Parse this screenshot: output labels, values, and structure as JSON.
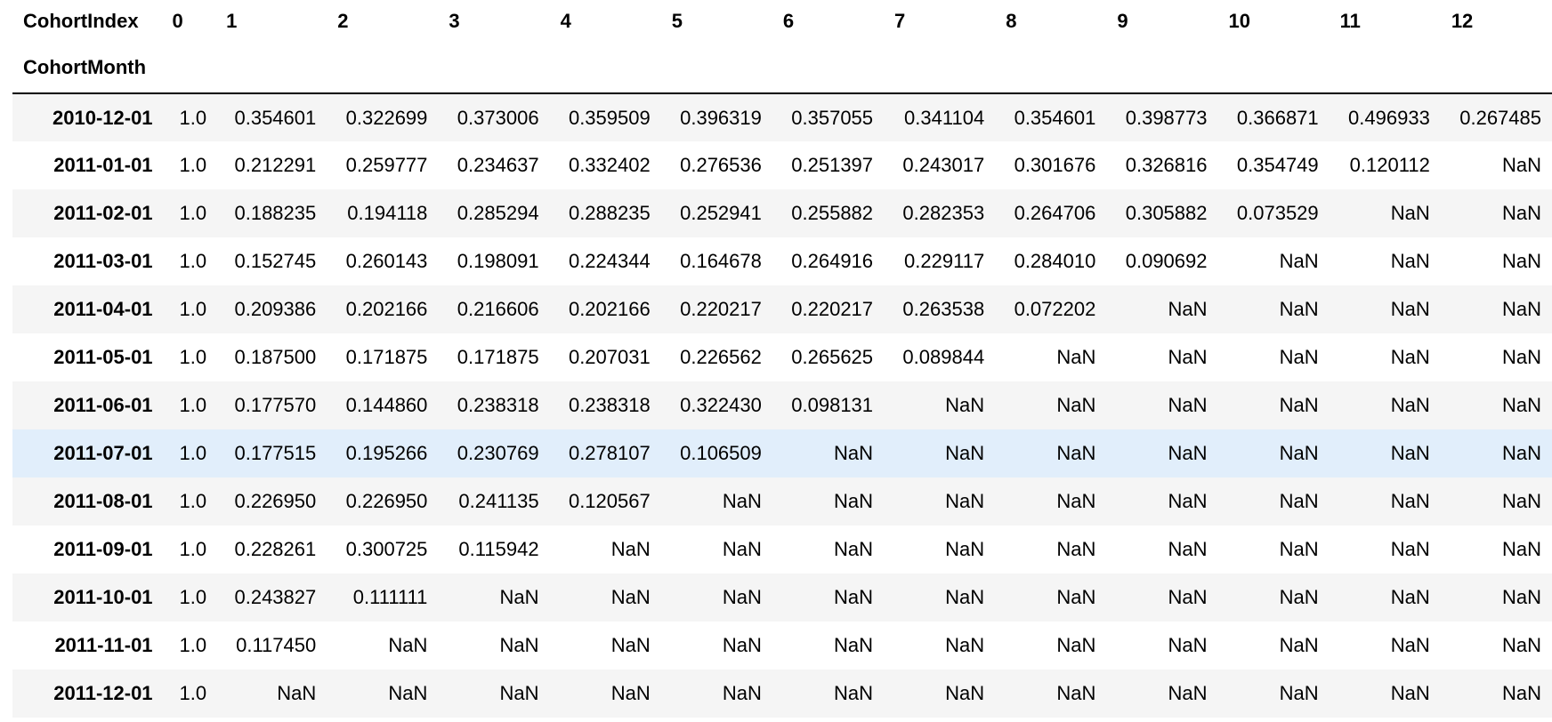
{
  "table": {
    "columns_name": "CohortIndex",
    "index_name": "CohortMonth",
    "columns": [
      "0",
      "1",
      "2",
      "3",
      "4",
      "5",
      "6",
      "7",
      "8",
      "9",
      "10",
      "11",
      "12"
    ],
    "highlight_color": "#e1eefb",
    "stripe_color": "#f5f5f5",
    "highlighted_row": "2011-07-01",
    "rows": [
      {
        "label": "2010-12-01",
        "values": [
          "1.0",
          "0.354601",
          "0.322699",
          "0.373006",
          "0.359509",
          "0.396319",
          "0.357055",
          "0.341104",
          "0.354601",
          "0.398773",
          "0.366871",
          "0.496933",
          "0.267485"
        ]
      },
      {
        "label": "2011-01-01",
        "values": [
          "1.0",
          "0.212291",
          "0.259777",
          "0.234637",
          "0.332402",
          "0.276536",
          "0.251397",
          "0.243017",
          "0.301676",
          "0.326816",
          "0.354749",
          "0.120112",
          "NaN"
        ]
      },
      {
        "label": "2011-02-01",
        "values": [
          "1.0",
          "0.188235",
          "0.194118",
          "0.285294",
          "0.288235",
          "0.252941",
          "0.255882",
          "0.282353",
          "0.264706",
          "0.305882",
          "0.073529",
          "NaN",
          "NaN"
        ]
      },
      {
        "label": "2011-03-01",
        "values": [
          "1.0",
          "0.152745",
          "0.260143",
          "0.198091",
          "0.224344",
          "0.164678",
          "0.264916",
          "0.229117",
          "0.284010",
          "0.090692",
          "NaN",
          "NaN",
          "NaN"
        ]
      },
      {
        "label": "2011-04-01",
        "values": [
          "1.0",
          "0.209386",
          "0.202166",
          "0.216606",
          "0.202166",
          "0.220217",
          "0.220217",
          "0.263538",
          "0.072202",
          "NaN",
          "NaN",
          "NaN",
          "NaN"
        ]
      },
      {
        "label": "2011-05-01",
        "values": [
          "1.0",
          "0.187500",
          "0.171875",
          "0.171875",
          "0.207031",
          "0.226562",
          "0.265625",
          "0.089844",
          "NaN",
          "NaN",
          "NaN",
          "NaN",
          "NaN"
        ]
      },
      {
        "label": "2011-06-01",
        "values": [
          "1.0",
          "0.177570",
          "0.144860",
          "0.238318",
          "0.238318",
          "0.322430",
          "0.098131",
          "NaN",
          "NaN",
          "NaN",
          "NaN",
          "NaN",
          "NaN"
        ]
      },
      {
        "label": "2011-07-01",
        "values": [
          "1.0",
          "0.177515",
          "0.195266",
          "0.230769",
          "0.278107",
          "0.106509",
          "NaN",
          "NaN",
          "NaN",
          "NaN",
          "NaN",
          "NaN",
          "NaN"
        ]
      },
      {
        "label": "2011-08-01",
        "values": [
          "1.0",
          "0.226950",
          "0.226950",
          "0.241135",
          "0.120567",
          "NaN",
          "NaN",
          "NaN",
          "NaN",
          "NaN",
          "NaN",
          "NaN",
          "NaN"
        ]
      },
      {
        "label": "2011-09-01",
        "values": [
          "1.0",
          "0.228261",
          "0.300725",
          "0.115942",
          "NaN",
          "NaN",
          "NaN",
          "NaN",
          "NaN",
          "NaN",
          "NaN",
          "NaN",
          "NaN"
        ]
      },
      {
        "label": "2011-10-01",
        "values": [
          "1.0",
          "0.243827",
          "0.111111",
          "NaN",
          "NaN",
          "NaN",
          "NaN",
          "NaN",
          "NaN",
          "NaN",
          "NaN",
          "NaN",
          "NaN"
        ]
      },
      {
        "label": "2011-11-01",
        "values": [
          "1.0",
          "0.117450",
          "NaN",
          "NaN",
          "NaN",
          "NaN",
          "NaN",
          "NaN",
          "NaN",
          "NaN",
          "NaN",
          "NaN",
          "NaN"
        ]
      },
      {
        "label": "2011-12-01",
        "values": [
          "1.0",
          "NaN",
          "NaN",
          "NaN",
          "NaN",
          "NaN",
          "NaN",
          "NaN",
          "NaN",
          "NaN",
          "NaN",
          "NaN",
          "NaN"
        ]
      }
    ]
  }
}
